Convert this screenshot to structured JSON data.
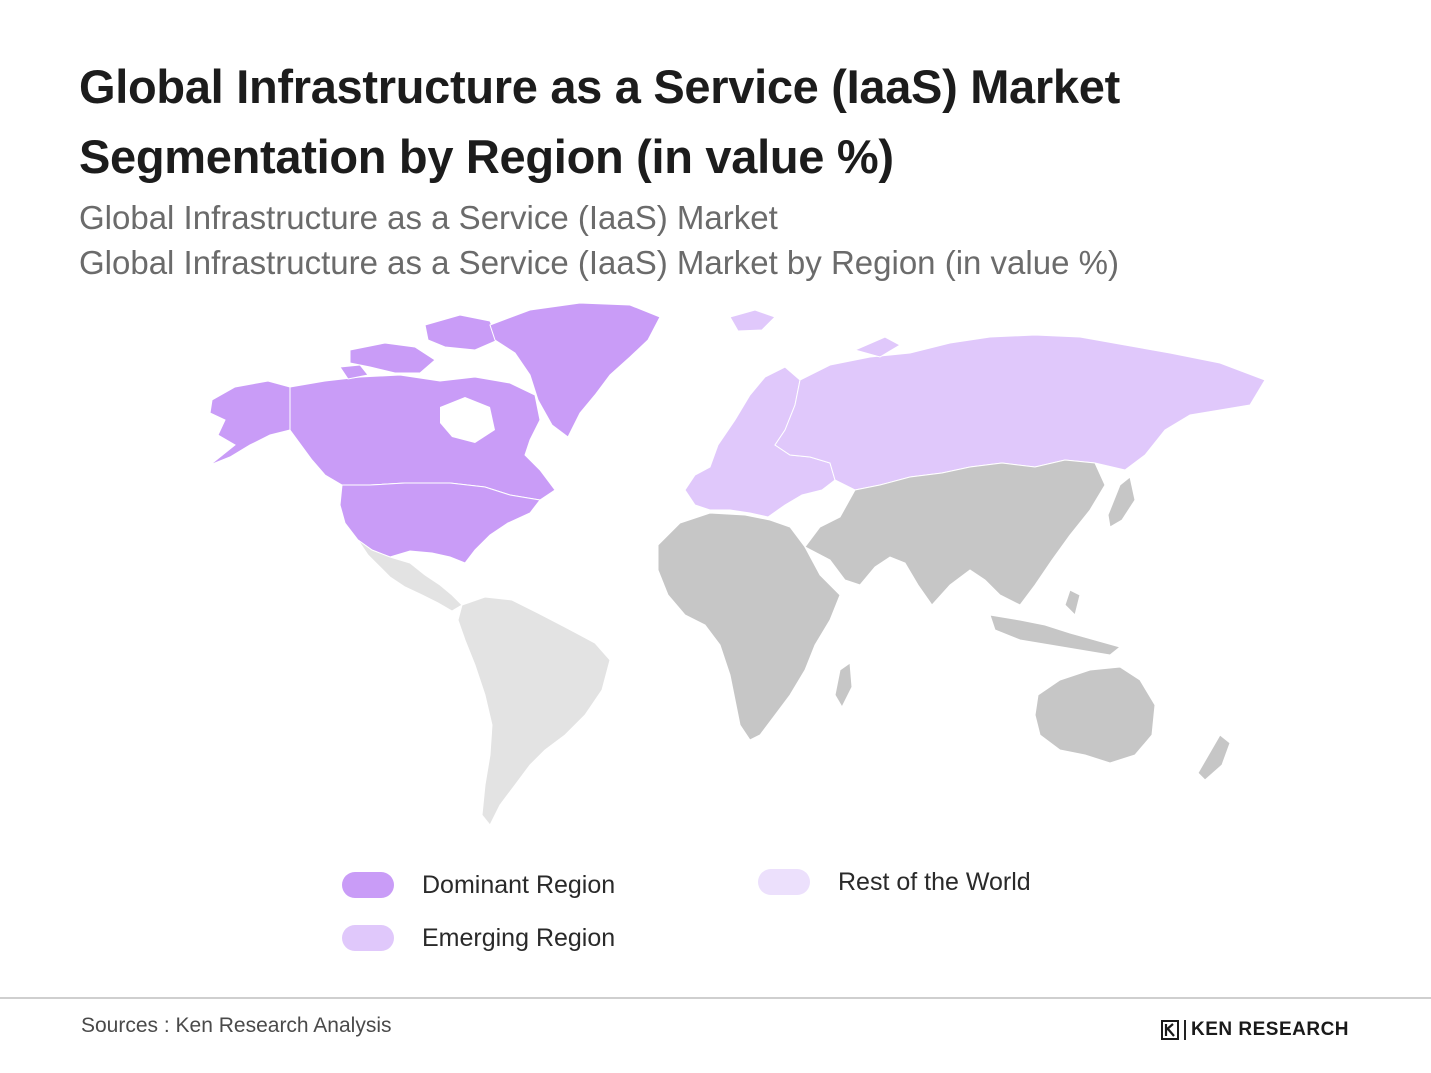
{
  "title_line1": "Global Infrastructure as a Service (IaaS) Market",
  "title_line2": "Segmentation by Region (in value %)",
  "subtitle_line1": "Global Infrastructure as a Service (IaaS) Market",
  "subtitle_line2": "Global Infrastructure as a Service (IaaS) Market by Region (in value %)",
  "colors": {
    "dominant": "#c99cf7",
    "emerging": "#e0c8fb",
    "rest": "#ece0fc",
    "other_grey": "#c6c6c6",
    "latam_grey": "#e3e3e3"
  },
  "legend": [
    {
      "key": "dominant",
      "label": "Dominant Region",
      "color": "#c99cf7"
    },
    {
      "key": "emerging",
      "label": "Emerging Region",
      "color": "#e0c8fb"
    },
    {
      "key": "rest",
      "label": "Rest of the World",
      "color": "#ece0fc"
    }
  ],
  "footer": {
    "sources": "Sources : Ken Research Analysis",
    "brand": "KEN RESEARCH"
  }
}
